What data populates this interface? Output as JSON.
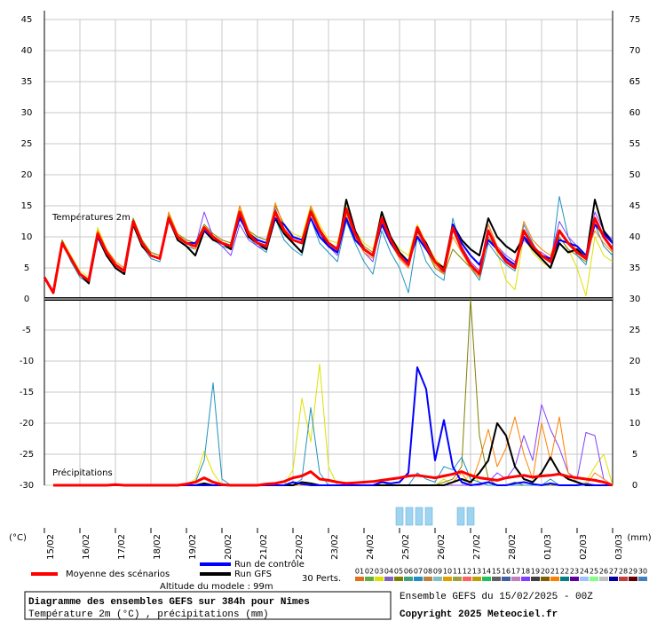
{
  "chart_data": {
    "type": "line",
    "title": "Diagramme des ensembles GEFS sur 384h pour Nîmes",
    "subtitle": "Température 2m (°C) , précipitations (mm)",
    "run": "Ensemble GEFS du 15/02/2025 - 00Z",
    "copyright": "Copyright 2025 Meteociel.fr",
    "altitude": "Altitude du modele : 99m",
    "y_label": "(°C)",
    "y2_label": "(mm)",
    "annotations": [
      "Températures 2m",
      "Précipitations"
    ],
    "members_label": "30 Perts.",
    "grid": true,
    "x": [
      0,
      6,
      12,
      18,
      24,
      30,
      36,
      42,
      48,
      54,
      60,
      66,
      72,
      78,
      84,
      90,
      96,
      102,
      108,
      114,
      120,
      126,
      132,
      138,
      144,
      150,
      156,
      162,
      168,
      174,
      180,
      186,
      192,
      198,
      204,
      210,
      216,
      222,
      228,
      234,
      240,
      246,
      252,
      258,
      264,
      270,
      276,
      282,
      288,
      294,
      300,
      306,
      312,
      318,
      324,
      330,
      336,
      342,
      348,
      354,
      360,
      366,
      372,
      378,
      384
    ],
    "xlim": [
      0,
      384
    ],
    "xticks": [
      {
        "value": 0,
        "label": "15/02"
      },
      {
        "value": 24,
        "label": "16/02"
      },
      {
        "value": 48,
        "label": "17/02"
      },
      {
        "value": 72,
        "label": "18/02"
      },
      {
        "value": 96,
        "label": "19/02"
      },
      {
        "value": 120,
        "label": "20/02"
      },
      {
        "value": 144,
        "label": "21/02"
      },
      {
        "value": 168,
        "label": "22/02"
      },
      {
        "value": 192,
        "label": "23/02"
      },
      {
        "value": 216,
        "label": "24/02"
      },
      {
        "value": 240,
        "label": "25/02"
      },
      {
        "value": 264,
        "label": "26/02"
      },
      {
        "value": 288,
        "label": "27/02"
      },
      {
        "value": 312,
        "label": "28/02"
      },
      {
        "value": 336,
        "label": "01/03"
      },
      {
        "value": 360,
        "label": "02/03"
      },
      {
        "value": 384,
        "label": "03/03"
      }
    ],
    "ylim": [
      -30,
      45
    ],
    "yticks": [
      45,
      40,
      35,
      30,
      25,
      20,
      15,
      10,
      5,
      0,
      -5,
      -10,
      -15,
      -20,
      -25,
      -30
    ],
    "y2lim": [
      0,
      75
    ],
    "y2ticks": [
      75,
      70,
      65,
      60,
      55,
      50,
      45,
      40,
      35,
      30,
      25,
      20,
      15,
      10,
      5,
      0
    ],
    "series": [
      {
        "name": "Moyenne des scénarios",
        "color": "#ff0000",
        "values": [
          3.5,
          1,
          9,
          6.5,
          4,
          3,
          10.5,
          7.5,
          5.5,
          4.5,
          12.5,
          9,
          7,
          6.5,
          13,
          10,
          9,
          8.5,
          11.5,
          10,
          9,
          8.5,
          14,
          10.5,
          9,
          8.5,
          14,
          11,
          9.5,
          9,
          14,
          11,
          9,
          8,
          14.5,
          10.5,
          8,
          7,
          13,
          9.5,
          7,
          5.5,
          11.5,
          8.5,
          6,
          4.5,
          11.5,
          8,
          5.5,
          4,
          11,
          8,
          6,
          5,
          11,
          8.5,
          7,
          6,
          11,
          9,
          7.5,
          6.5,
          13,
          10,
          8
        ],
        "precip": [
          null,
          0,
          0,
          0,
          0,
          0,
          0,
          0,
          0.1,
          0,
          0,
          0,
          0,
          0,
          0,
          0,
          0.2,
          0.5,
          1.2,
          0.5,
          0.1,
          0,
          0,
          0,
          0,
          0.2,
          0.3,
          0.6,
          1.2,
          1.5,
          2.2,
          1,
          0.8,
          0.5,
          0.3,
          0.4,
          0.5,
          0.6,
          0.8,
          1,
          1.2,
          1.5,
          1.6,
          1.4,
          1.2,
          1.5,
          1.8,
          2.2,
          1.6,
          1.2,
          1,
          0.8,
          1.2,
          1.4,
          1.6,
          1.3,
          1.5,
          1.6,
          1.8,
          1.4,
          1.2,
          1,
          0.8,
          0.5,
          0
        ]
      },
      {
        "name": "Run de contrôle",
        "color": "#0000ff",
        "values": [
          3.5,
          1,
          9,
          6.5,
          4,
          3,
          10,
          7.5,
          5.5,
          4.5,
          12.5,
          9,
          7,
          6.5,
          13,
          10,
          9,
          9,
          11,
          10,
          9,
          8.5,
          13,
          10.5,
          9.5,
          9,
          13,
          12,
          10,
          9.5,
          13,
          10,
          8.5,
          7.5,
          13,
          9.5,
          8,
          7,
          12,
          9,
          7,
          6,
          10,
          8,
          6,
          4.5,
          12,
          9,
          7,
          5.5,
          9.5,
          8,
          6.5,
          5.5,
          10,
          8.5,
          7,
          6.5,
          9.5,
          9,
          8.5,
          7,
          12,
          10.5,
          9
        ],
        "precip": [
          null,
          0,
          0,
          0,
          0,
          0,
          0,
          0,
          0,
          0,
          0,
          0,
          0,
          0,
          0,
          0,
          0,
          0,
          0,
          0,
          0,
          0,
          0,
          0,
          0,
          0,
          0,
          0,
          0.5,
          0.2,
          0,
          0,
          0,
          0,
          0,
          0,
          0,
          0,
          0.5,
          0.3,
          0.5,
          2,
          19,
          15.5,
          4,
          10.5,
          3,
          0.5,
          0,
          0.2,
          0.5,
          0,
          0,
          0.3,
          0.5,
          0.2,
          0,
          0.3,
          0,
          0,
          0,
          0.2,
          0,
          0,
          0
        ]
      },
      {
        "name": "Run GFS",
        "color": "#000000",
        "values": [
          3.5,
          1,
          9,
          6.5,
          4,
          2.5,
          10,
          7,
          5,
          4,
          12,
          8.5,
          7,
          6.5,
          13,
          9.5,
          8.5,
          7,
          11,
          9.5,
          9,
          8,
          13.5,
          10,
          9,
          8,
          13,
          10.5,
          9,
          7.5,
          14,
          11,
          8.5,
          7.5,
          16,
          11,
          8,
          7,
          14,
          10,
          7.5,
          6,
          11,
          9,
          6,
          5,
          12,
          9.5,
          8,
          7,
          13,
          10,
          8.5,
          7.5,
          10,
          8,
          6.5,
          5,
          9,
          7.5,
          8,
          6.5,
          16,
          11,
          9
        ],
        "precip": [
          null,
          0,
          0,
          0,
          0,
          0,
          0,
          0,
          0,
          0,
          0,
          0,
          0,
          0,
          0,
          0,
          0,
          0,
          0.3,
          0,
          0,
          0,
          0,
          0,
          0,
          0,
          0,
          0,
          0,
          0.5,
          0.3,
          0,
          0,
          0,
          0,
          0,
          0,
          0,
          0,
          0,
          0,
          0,
          0,
          0,
          0,
          0,
          0.5,
          1,
          0.5,
          2,
          4,
          10,
          8,
          3,
          1,
          0.5,
          2,
          4.5,
          2,
          1,
          0.5,
          0,
          0,
          0,
          0
        ]
      }
    ],
    "members": [
      {
        "name": "01",
        "color": "#e07020"
      },
      {
        "name": "02",
        "color": "#60b040"
      },
      {
        "name": "03",
        "color": "#e0e000",
        "values": [
          3.5,
          1,
          9.5,
          7,
          4.5,
          3.5,
          11.5,
          8,
          6,
          5,
          13,
          9.5,
          7.5,
          7,
          13.5,
          10.5,
          9.5,
          9,
          12,
          10.5,
          9.5,
          9,
          14.5,
          11,
          9.5,
          9,
          15,
          12,
          10.5,
          10,
          15,
          12,
          9.5,
          9,
          15,
          11,
          9,
          8,
          14,
          10,
          8,
          7,
          12,
          9,
          6.5,
          5,
          11,
          8.5,
          5,
          3.5,
          11,
          7.5,
          3,
          1.5,
          10,
          7.5,
          6,
          5,
          10,
          8,
          5,
          0.5,
          10,
          7,
          6
        ],
        "precip": [
          null,
          0,
          0,
          0,
          0,
          0,
          0,
          0,
          0,
          0,
          0,
          0,
          0,
          0,
          0,
          0,
          0,
          1,
          5.5,
          2,
          0,
          0,
          0,
          0,
          0,
          0,
          0,
          0,
          2.5,
          14,
          7,
          19.5,
          3,
          0,
          0,
          0,
          0,
          0,
          0,
          0,
          0,
          0,
          0,
          0,
          0,
          1,
          0,
          0,
          2,
          0.5,
          0,
          0,
          0,
          0,
          0,
          0,
          0,
          0,
          0,
          0,
          0,
          0.5,
          3,
          5,
          0
        ]
      },
      {
        "name": "04",
        "color": "#8060c0"
      },
      {
        "name": "05",
        "color": "#808000",
        "values": [
          3.5,
          1,
          9.5,
          6.5,
          4,
          3,
          11,
          8,
          6,
          5,
          13,
          9.5,
          7.5,
          7,
          13.5,
          10.5,
          9.5,
          9,
          12,
          10.5,
          9.5,
          9,
          15,
          11,
          10,
          9.5,
          15,
          12,
          10,
          9.5,
          14.5,
          11.5,
          9,
          8,
          14,
          10.5,
          8.5,
          7.5,
          12,
          9.5,
          7,
          6,
          10,
          8,
          5,
          4,
          8,
          6.5,
          5,
          4,
          10,
          8,
          6,
          5,
          10.5,
          9,
          6.5,
          5,
          10,
          8,
          7,
          6,
          12,
          10,
          8
        ],
        "precip": [
          null,
          0,
          0,
          0,
          0,
          0,
          0,
          0,
          0,
          0,
          0,
          0,
          0,
          0,
          0,
          0,
          0,
          0,
          0,
          0,
          0,
          0,
          0,
          0,
          0,
          0,
          0,
          0,
          0,
          0,
          0,
          0,
          0,
          0,
          0,
          0,
          0,
          0,
          0,
          0,
          0,
          0,
          0,
          0,
          0,
          0.5,
          1,
          3,
          30,
          8,
          1,
          0,
          0,
          0.5,
          0,
          0,
          0,
          0,
          0,
          0,
          0,
          0,
          0,
          0,
          0
        ]
      },
      {
        "name": "06",
        "color": "#40a080"
      },
      {
        "name": "07",
        "color": "#2090c0",
        "values": [
          3.5,
          1,
          9,
          6,
          3.5,
          2.5,
          10,
          7,
          5,
          4,
          12,
          8.5,
          6.5,
          6,
          12.5,
          9.5,
          8.5,
          8,
          11,
          9.5,
          8.5,
          8,
          13.5,
          10,
          8.5,
          7.5,
          13,
          9.5,
          8,
          7,
          13,
          9,
          7.5,
          6,
          12.5,
          9,
          6,
          4,
          11,
          7.5,
          5,
          1,
          10,
          6,
          4,
          3,
          13,
          8,
          5,
          3,
          9,
          7,
          5.5,
          4.5,
          12,
          9,
          6.5,
          5,
          16.5,
          10,
          7,
          5.5,
          12,
          8.5,
          7
        ],
        "precip": [
          null,
          0,
          0,
          0,
          0,
          0,
          0,
          0,
          0,
          0,
          0,
          0,
          0,
          0,
          0,
          0,
          0,
          0.5,
          4,
          16.5,
          1,
          0,
          0,
          0,
          0,
          0,
          0,
          0,
          0,
          1,
          12.5,
          2,
          0,
          0,
          0,
          0,
          0,
          0,
          0.5,
          0,
          0,
          0,
          2,
          1,
          0.5,
          3,
          2.5,
          4.5,
          1,
          0.5,
          0,
          0,
          0,
          0,
          0,
          0,
          0,
          1,
          0,
          0,
          0,
          0,
          0,
          0,
          0
        ]
      },
      {
        "name": "08",
        "color": "#c08040"
      },
      {
        "name": "09",
        "color": "#80c0c0"
      },
      {
        "name": "10",
        "color": "#e0a000"
      },
      {
        "name": "11",
        "color": "#a0a040"
      },
      {
        "name": "12",
        "color": "#ff6060"
      },
      {
        "name": "13",
        "color": "#c0a000"
      },
      {
        "name": "14",
        "color": "#20c060"
      },
      {
        "name": "15",
        "color": "#606060"
      },
      {
        "name": "16",
        "color": "#4060a0"
      },
      {
        "name": "17",
        "color": "#c080c0"
      },
      {
        "name": "18",
        "color": "#8040ff",
        "values": [
          3.5,
          1,
          9,
          6.5,
          4,
          3,
          10.5,
          7.5,
          5.5,
          4.5,
          12,
          9,
          7,
          6.5,
          13,
          10,
          9,
          8.5,
          14,
          10,
          8.5,
          7,
          12,
          9.5,
          8.5,
          8,
          14.5,
          11,
          9.5,
          9,
          13,
          10.5,
          8.5,
          7,
          13,
          10,
          7.5,
          6,
          12.5,
          9,
          6.5,
          5,
          11,
          8,
          6,
          4,
          11.5,
          8.5,
          6,
          4.5,
          12,
          8.5,
          7,
          6,
          9.5,
          8,
          7.5,
          6.5,
          12.5,
          10,
          8.5,
          7,
          14,
          11,
          9.5
        ],
        "precip": [
          null,
          0,
          0,
          0,
          0,
          0,
          0,
          0,
          0,
          0,
          0,
          0,
          0,
          0,
          0,
          0,
          0,
          0,
          0,
          0,
          0,
          0,
          0,
          0,
          0,
          0,
          0,
          0,
          0,
          0,
          0,
          0,
          0,
          0,
          0,
          0,
          0,
          0,
          0,
          0,
          0,
          0,
          0,
          0,
          0,
          0,
          0,
          0,
          0,
          0,
          0.5,
          2,
          1,
          3,
          8,
          4,
          13,
          9,
          6,
          2,
          1,
          8.5,
          8,
          1,
          0
        ]
      },
      {
        "name": "19",
        "color": "#404040"
      },
      {
        "name": "20",
        "color": "#806000"
      },
      {
        "name": "21",
        "color": "#ff8000",
        "values": [
          3.5,
          1,
          9,
          6.5,
          4,
          3,
          11,
          8,
          6,
          5,
          12.5,
          9,
          7,
          6.5,
          14,
          10.5,
          9,
          8,
          11,
          9.5,
          9,
          8.5,
          15,
          11,
          9,
          8,
          15.5,
          11.5,
          9.5,
          9,
          15,
          11.5,
          9,
          8,
          13.5,
          10,
          7.5,
          6.5,
          12,
          9,
          6.5,
          5,
          10.5,
          8,
          5.5,
          4,
          10,
          7.5,
          5,
          3.5,
          12,
          8.5,
          6.5,
          5.5,
          12.5,
          9.5,
          8,
          7,
          11,
          9,
          8,
          7,
          11,
          9,
          7.5
        ],
        "precip": [
          null,
          0,
          0,
          0,
          0,
          0,
          0,
          0,
          0,
          0,
          0,
          0,
          0,
          0,
          0,
          0,
          0,
          0,
          0,
          0,
          0,
          0,
          0,
          0,
          0,
          0,
          0,
          0,
          0,
          0,
          0,
          0,
          0,
          0,
          0,
          0,
          0,
          0,
          0,
          0,
          0,
          0,
          0,
          0,
          0,
          0,
          0.5,
          2,
          0,
          4,
          9,
          3,
          6,
          11,
          5,
          1,
          10,
          4,
          11,
          2,
          0.5,
          0,
          2,
          1,
          0
        ]
      },
      {
        "name": "22",
        "color": "#008080"
      },
      {
        "name": "23",
        "color": "#6000a0"
      },
      {
        "name": "24",
        "color": "#a0c0ff"
      },
      {
        "name": "25",
        "color": "#80ff80"
      },
      {
        "name": "26",
        "color": "#c0c0c0"
      },
      {
        "name": "27",
        "color": "#0000a0"
      },
      {
        "name": "28",
        "color": "#c04040"
      },
      {
        "name": "29",
        "color": "#600000"
      },
      {
        "name": "30",
        "color": "#4080c0"
      }
    ]
  }
}
